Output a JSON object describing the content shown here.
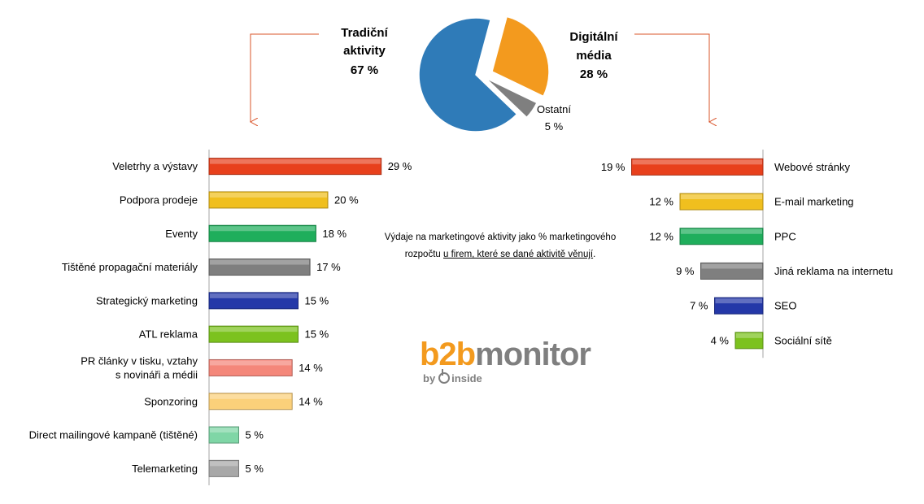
{
  "chart_data": [
    {
      "type": "pie",
      "categories": [
        "Tradiční aktivity",
        "Digitální média",
        "Ostatní"
      ],
      "values": [
        67,
        28,
        5
      ],
      "labels": {
        "trad": [
          "Tradiční",
          "aktivity",
          "67 %"
        ],
        "digi": [
          "Digitální",
          "média",
          "28 %"
        ],
        "other": [
          "Ostatní",
          "5 %"
        ]
      },
      "colors": [
        "#2f7bb8",
        "#f39a1e",
        "#7f7f7f"
      ]
    },
    {
      "type": "bar",
      "orientation": "horizontal",
      "categories": [
        [
          "Veletrhy a výstavy"
        ],
        [
          "Podpora prodeje"
        ],
        [
          "Eventy"
        ],
        [
          "Tištěné propagační materiály"
        ],
        [
          "Strategický marketing"
        ],
        [
          "ATL reklama"
        ],
        [
          "PR články v tisku, vztahy",
          "s novináři a médii"
        ],
        [
          "Sponzoring"
        ],
        [
          "Direct mailingové kampaně (tištěné)"
        ],
        [
          "Telemarketing"
        ]
      ],
      "values": [
        29,
        20,
        18,
        17,
        15,
        15,
        14,
        14,
        5,
        5
      ],
      "value_labels": [
        "29 %",
        "20 %",
        "18 %",
        "17 %",
        "15 %",
        "15 %",
        "14 %",
        "14 %",
        "5 %",
        "5 %"
      ],
      "colors": [
        "#e8401c",
        "#f0bf1e",
        "#1fae5c",
        "#7f7f7f",
        "#2438a8",
        "#7cc21e",
        "#f4877a",
        "#fbd07a",
        "#7fd6a6",
        "#a8a8a8"
      ]
    },
    {
      "type": "bar",
      "orientation": "horizontal",
      "categories": [
        [
          "Webové stránky"
        ],
        [
          "E-mail marketing"
        ],
        [
          "PPC"
        ],
        [
          "Jiná reklama na internetu"
        ],
        [
          "SEO"
        ],
        [
          "Sociální sítě"
        ]
      ],
      "values": [
        19,
        12,
        12,
        9,
        7,
        4
      ],
      "value_labels": [
        "19 %",
        "12 %",
        "12 %",
        "9 %",
        "7 %",
        "4 %"
      ],
      "colors": [
        "#e8401c",
        "#f0bf1e",
        "#1fae5c",
        "#7f7f7f",
        "#2438a8",
        "#7cc21e"
      ]
    }
  ],
  "note": {
    "line1": "Výdaje na marketingové aktivity jako % marketingového",
    "line2_plain": "rozpočtu ",
    "line2_underlined": "u firem, které se dané aktivitě věnují",
    "line2_end": "."
  },
  "logo": {
    "b2b": "b2b",
    "monitor": "monitor",
    "by": "by",
    "inside": "inside"
  }
}
